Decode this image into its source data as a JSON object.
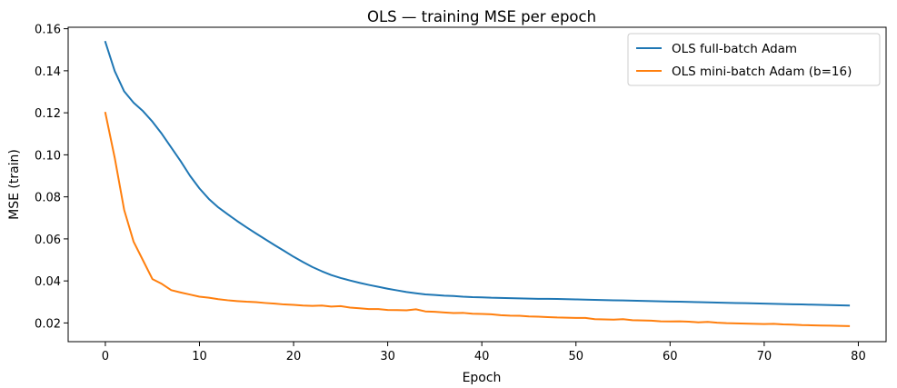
{
  "chart_data": {
    "type": "line",
    "title": "OLS — training MSE per epoch",
    "xlabel": "Epoch",
    "ylabel": "MSE (train)",
    "xlim": [
      -3.95,
      82.95
    ],
    "ylim": [
      0.0111,
      0.1607
    ],
    "xticks": [
      0,
      10,
      20,
      30,
      40,
      50,
      60,
      70,
      80
    ],
    "yticks": [
      0.02,
      0.04,
      0.06,
      0.08,
      0.1,
      0.12,
      0.14,
      0.16
    ],
    "ytick_labels": [
      "0.02",
      "0.04",
      "0.06",
      "0.08",
      "0.10",
      "0.12",
      "0.14",
      "0.16"
    ],
    "grid": false,
    "legend_position": "top-right",
    "series": [
      {
        "name": "OLS full-batch Adam",
        "color": "#1f77b4",
        "values": [
          0.1537,
          0.1398,
          0.1302,
          0.1248,
          0.1208,
          0.1158,
          0.11,
          0.1035,
          0.097,
          0.09,
          0.084,
          0.079,
          0.075,
          0.0717,
          0.0685,
          0.0655,
          0.0626,
          0.0598,
          0.057,
          0.0543,
          0.0515,
          0.049,
          0.0466,
          0.0446,
          0.0428,
          0.0414,
          0.0402,
          0.0391,
          0.0381,
          0.0372,
          0.0363,
          0.0355,
          0.0347,
          0.0341,
          0.0336,
          0.0333,
          0.033,
          0.0328,
          0.0325,
          0.0323,
          0.0322,
          0.032,
          0.0319,
          0.0318,
          0.0317,
          0.0316,
          0.0315,
          0.0315,
          0.0314,
          0.0313,
          0.0312,
          0.0311,
          0.031,
          0.0309,
          0.0308,
          0.0307,
          0.0306,
          0.0305,
          0.0304,
          0.0303,
          0.0302,
          0.0301,
          0.03,
          0.0299,
          0.0298,
          0.0297,
          0.0296,
          0.0295,
          0.0294,
          0.0293,
          0.0292,
          0.0291,
          0.029,
          0.0289,
          0.0288,
          0.0287,
          0.0286,
          0.0285,
          0.0284,
          0.0283
        ]
      },
      {
        "name": "OLS mini-batch Adam (b=16)",
        "color": "#ff7f0e",
        "values": [
          0.12,
          0.0985,
          0.0738,
          0.0587,
          0.0498,
          0.0409,
          0.0386,
          0.0356,
          0.0345,
          0.0335,
          0.0325,
          0.032,
          0.0313,
          0.0308,
          0.0304,
          0.0301,
          0.0299,
          0.0295,
          0.0292,
          0.0288,
          0.0286,
          0.0283,
          0.0281,
          0.0283,
          0.0278,
          0.028,
          0.0273,
          0.027,
          0.0266,
          0.0266,
          0.0262,
          0.0261,
          0.026,
          0.0265,
          0.0255,
          0.0253,
          0.025,
          0.0247,
          0.0248,
          0.0244,
          0.0243,
          0.0241,
          0.0237,
          0.0235,
          0.0234,
          0.0231,
          0.023,
          0.0228,
          0.0226,
          0.0225,
          0.0224,
          0.0224,
          0.0218,
          0.0217,
          0.0216,
          0.0218,
          0.0213,
          0.0212,
          0.0211,
          0.0208,
          0.0207,
          0.0208,
          0.0206,
          0.0203,
          0.0205,
          0.0201,
          0.0199,
          0.0198,
          0.0197,
          0.0196,
          0.0195,
          0.0196,
          0.0193,
          0.0192,
          0.019,
          0.0189,
          0.0188,
          0.0187,
          0.0186,
          0.0185
        ]
      }
    ]
  }
}
